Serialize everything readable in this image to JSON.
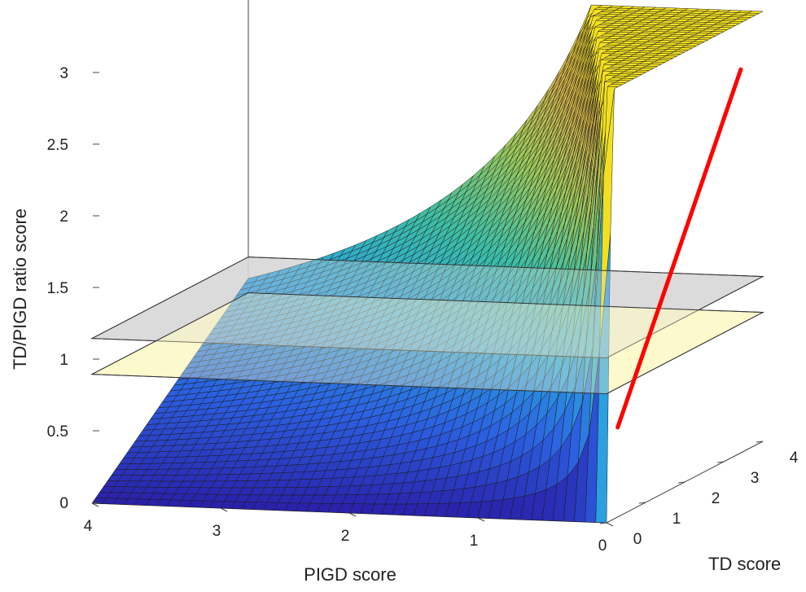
{
  "chart_data": {
    "type": "surface",
    "title": "",
    "function": "TD score / PIGD score",
    "xlabel": "PIGD score",
    "ylabel": "TD score",
    "zlabel": "TD/PIGD ratio score",
    "xlim": [
      0,
      4
    ],
    "ylim": [
      0,
      4
    ],
    "zlim": [
      0,
      3
    ],
    "x_ticks": [
      "4",
      "3",
      "2",
      "1",
      "0"
    ],
    "y_ticks": [
      "0",
      "1",
      "2",
      "3",
      "4"
    ],
    "z_ticks": [
      "0",
      "0.5",
      "1",
      "1.5",
      "2",
      "2.5",
      "3"
    ],
    "threshold_planes": [
      {
        "z": 1.15,
        "color": "#d8d8d8"
      },
      {
        "z": 0.9,
        "color": "#fbf8c8"
      }
    ],
    "highlight_line": {
      "color": "#ff0000",
      "points": [
        {
          "x": 0.05,
          "y": 0.45,
          "z": 0.6
        },
        {
          "x": 0.05,
          "y": 3.6,
          "z": 2.65
        }
      ]
    },
    "colormap": [
      "#2a1fa8",
      "#2b5fe0",
      "#2aa0e0",
      "#3cbfa6",
      "#9cc95a",
      "#d8b44a",
      "#f2e020"
    ]
  }
}
